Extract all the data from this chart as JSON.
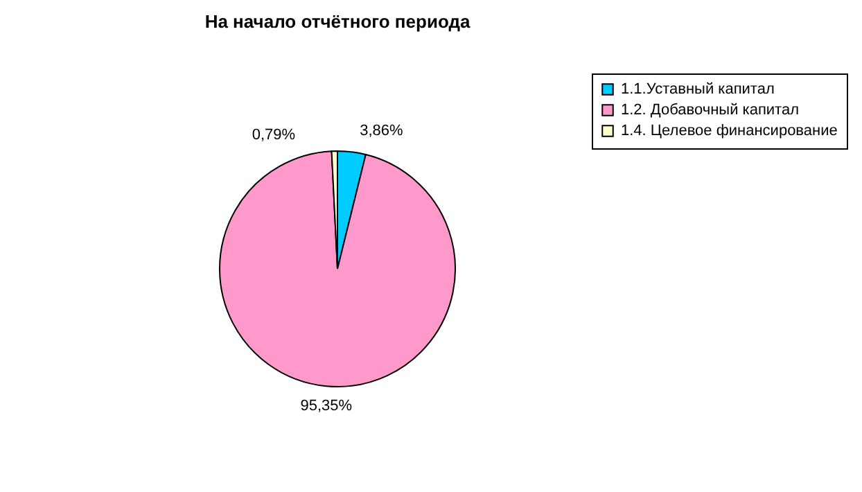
{
  "chart_data": {
    "type": "pie",
    "title": "На начало отчётного периода",
    "categories": [
      "1.1.Уставный капитал",
      "1.2. Добавочный капитал",
      "1.4. Целевое финансирование"
    ],
    "values": [
      3.86,
      95.35,
      0.79
    ],
    "colors": [
      "#00ccff",
      "#ff99cc",
      "#ffffcc"
    ],
    "value_labels": [
      "3,86%",
      "95,35%",
      "0,79%"
    ],
    "legend": "right"
  }
}
